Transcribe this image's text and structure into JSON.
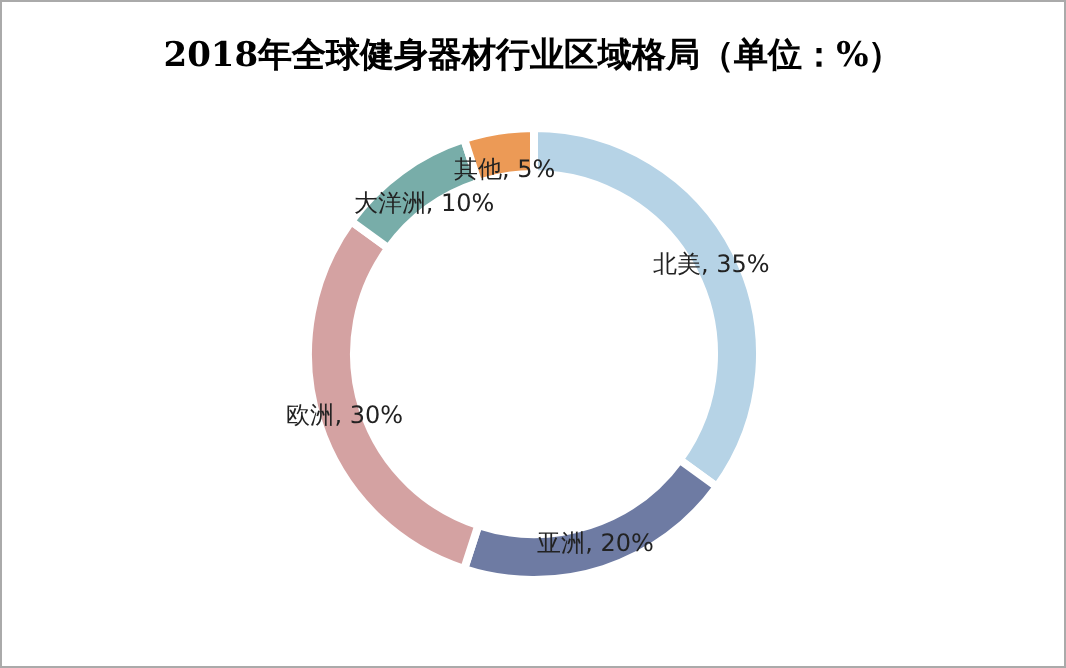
{
  "chart_data": {
    "type": "donut",
    "title": "2018年全球健身器材行业区域格局（单位：%）",
    "categories": [
      "北美",
      "亚洲",
      "欧洲",
      "大洋洲",
      "其他"
    ],
    "values": [
      35,
      20,
      30,
      10,
      5
    ],
    "colors": [
      "#b6d3e6",
      "#6e7ba3",
      "#d4a2a2",
      "#78ada9",
      "#ec9a56"
    ],
    "value_labels": [
      ", 35%",
      ", 20%",
      ", 30%",
      ", 10%",
      ", 5%"
    ],
    "legend": false
  }
}
